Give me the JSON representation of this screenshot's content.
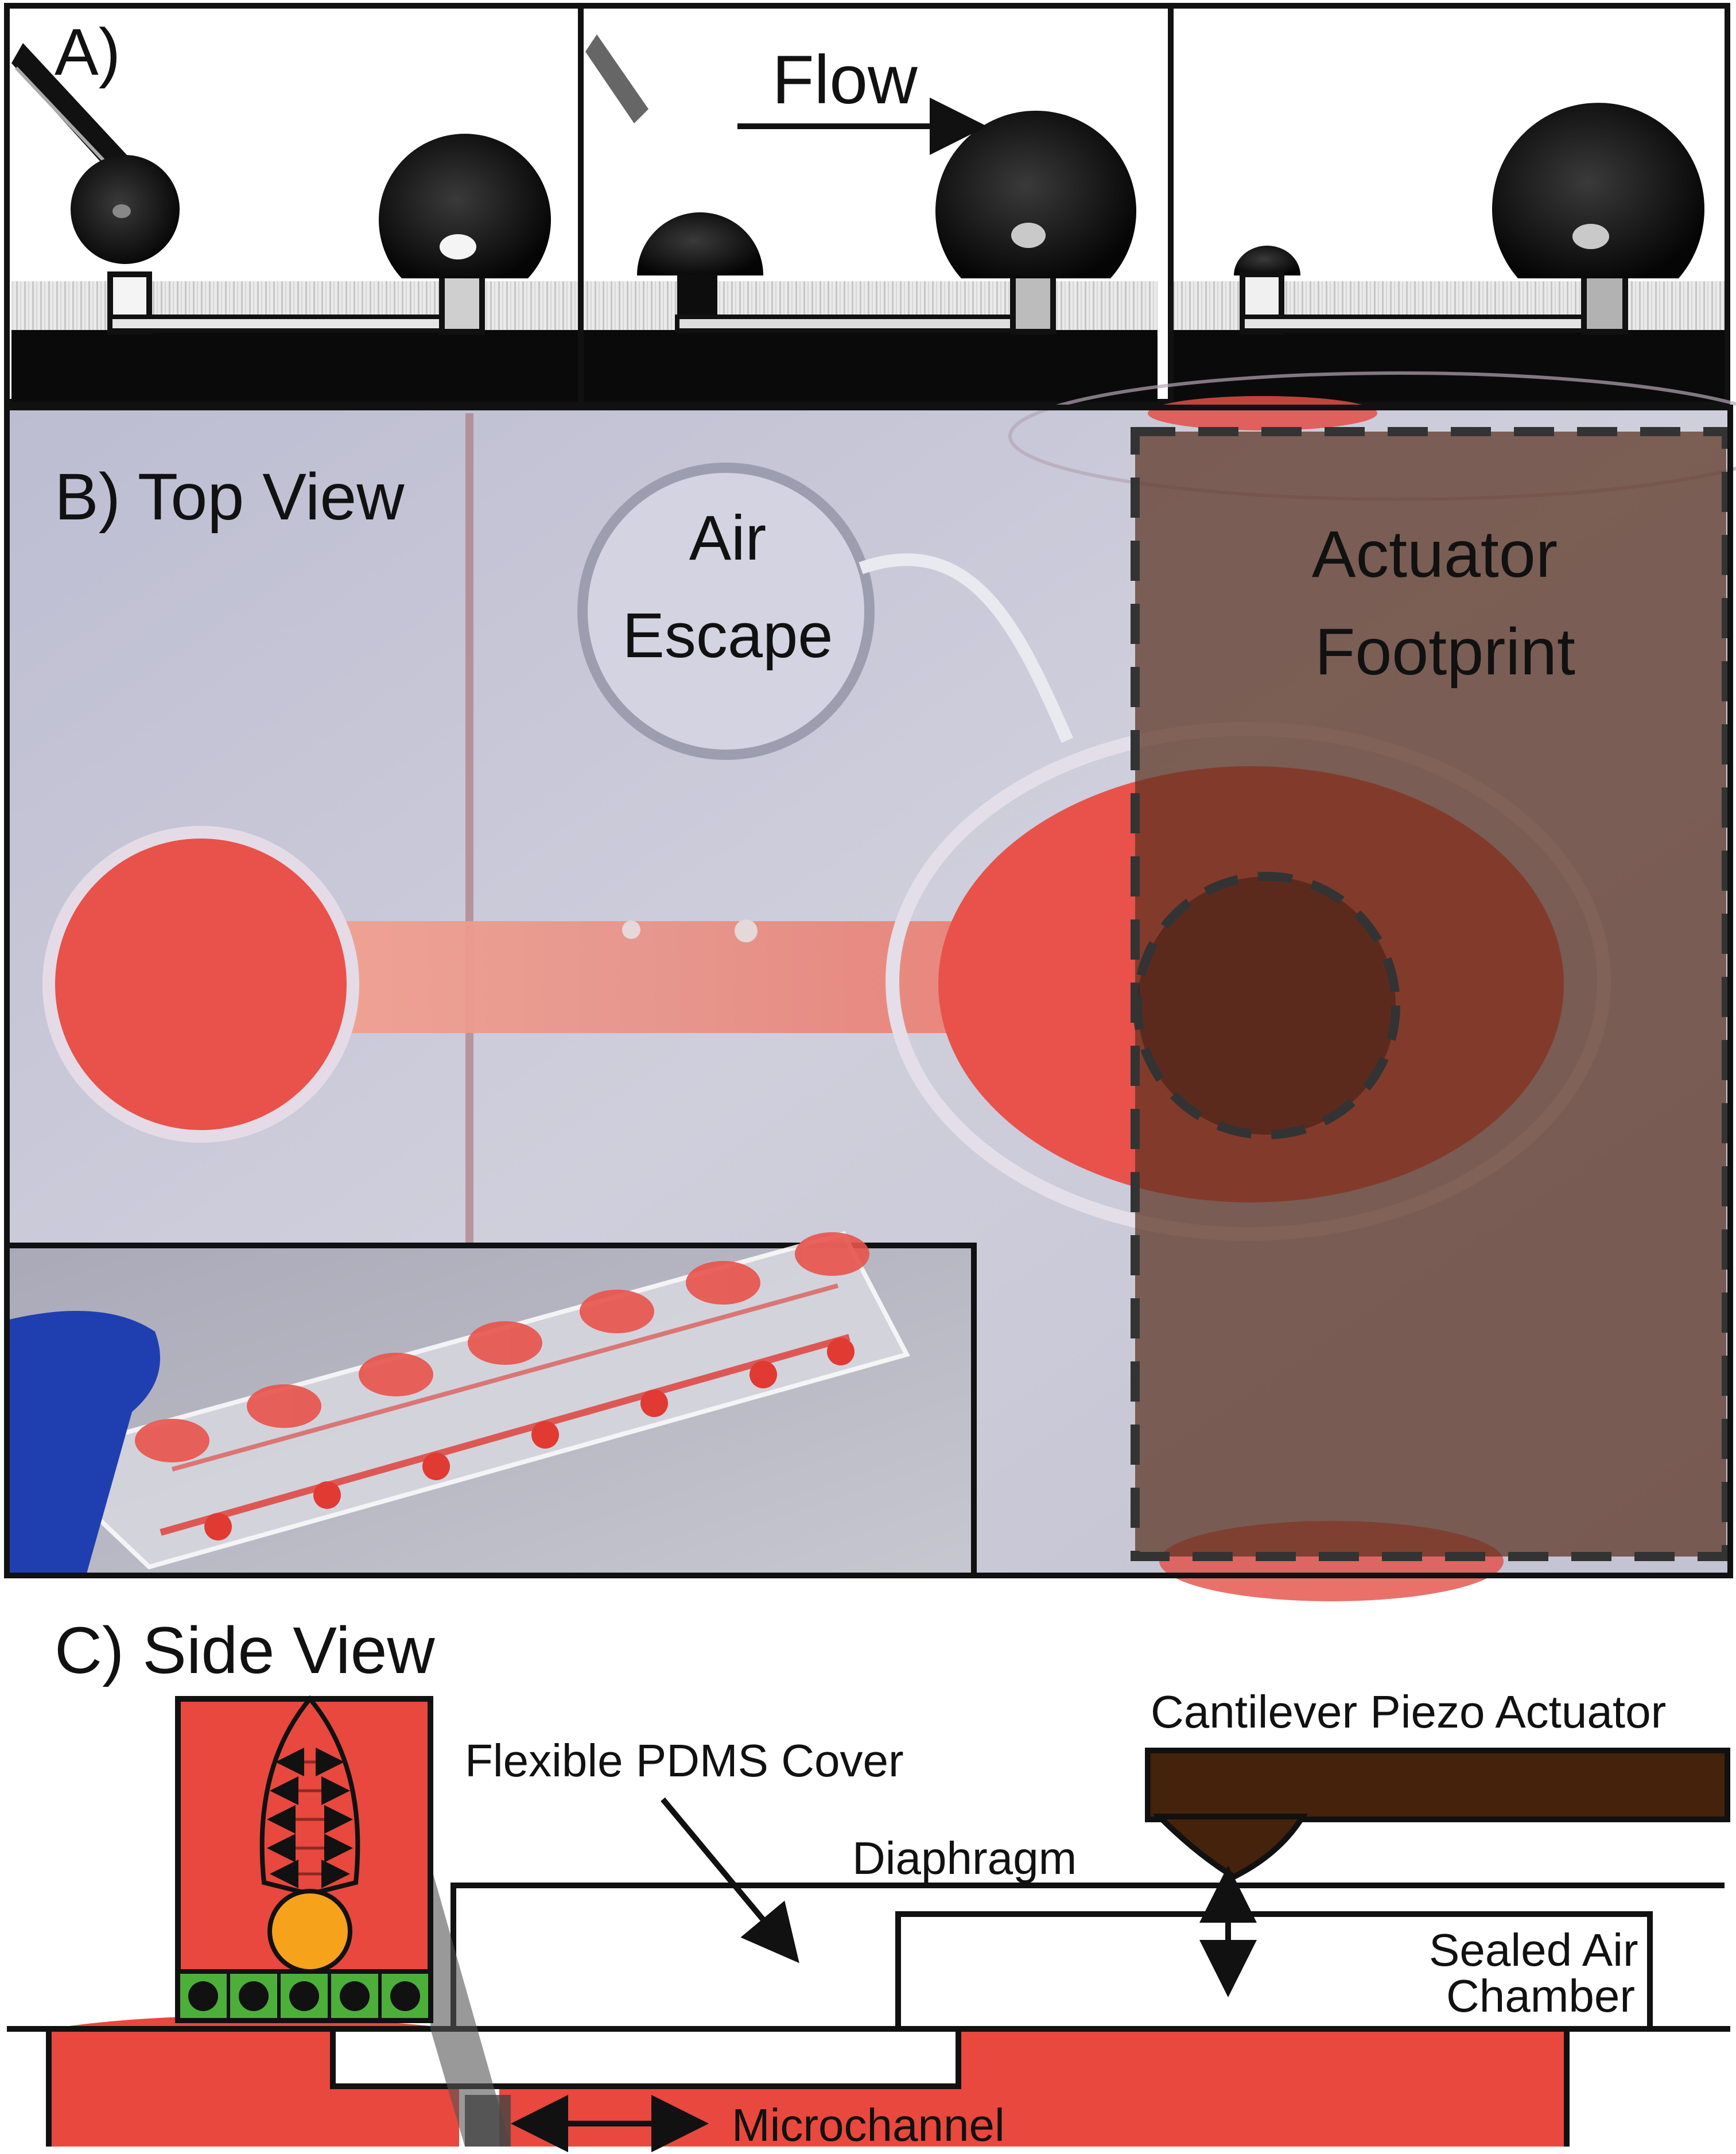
{
  "panel_a": {
    "label": "A)",
    "flow_label": "Flow"
  },
  "panel_b": {
    "label": "B) Top View",
    "air_escape": {
      "line1": "Air",
      "line2": "Escape"
    },
    "actuator_footprint": {
      "line1": "Actuator",
      "line2": "Footprint"
    }
  },
  "panel_c": {
    "label": "C) Side View",
    "cantilever": "Cantilever Piezo Actuator",
    "flexible_cover": "Flexible PDMS Cover",
    "diaphragm": "Diaphragm",
    "sealed_chamber": {
      "line1": "Sealed Air",
      "line2": "Chamber"
    },
    "microchannel": "Microchannel"
  },
  "colors": {
    "fluid_red": "#e8483d",
    "actuator_brown": "#45220c",
    "footprint_overlay": "#5a3220",
    "cell_green": "#4caf3a",
    "bead_orange": "#f7a21b",
    "chip_background": "#c9c8d8",
    "glove_blue": "#1f3fb0"
  }
}
